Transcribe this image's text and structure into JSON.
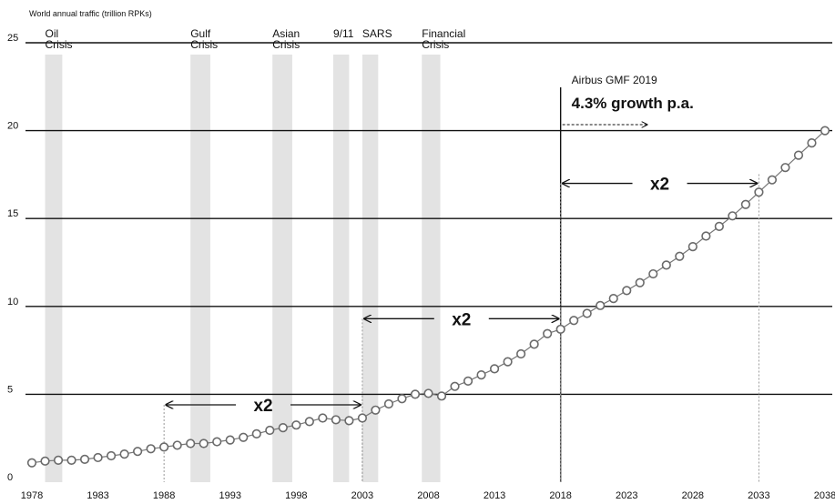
{
  "chart_data": {
    "type": "line",
    "title": "World annual traffic (trillion RPKs)",
    "xlabel": "",
    "ylabel": "",
    "xlim": [
      1978,
      2038
    ],
    "ylim": [
      0,
      25
    ],
    "x_ticks": [
      "1978",
      "1983",
      "1988",
      "1993",
      "1998",
      "2003",
      "2008",
      "2013",
      "2018",
      "2023",
      "2028",
      "2033",
      "2038"
    ],
    "y_ticks": [
      "0",
      "5",
      "10",
      "15",
      "20",
      "25"
    ],
    "grid_y": [
      5,
      10,
      15,
      20,
      25
    ],
    "series": [
      {
        "marker": "open-circle",
        "x": [
          1978,
          1979,
          1980,
          1981,
          1982,
          1983,
          1984,
          1985,
          1986,
          1987,
          1988,
          1989,
          1990,
          1991,
          1992,
          1993,
          1994,
          1995,
          1996,
          1997,
          1998,
          1999,
          2000,
          2001,
          2002,
          2003,
          2004,
          2005,
          2006,
          2007,
          2008,
          2009,
          2010,
          2011,
          2012,
          2013,
          2014,
          2015,
          2016,
          2017,
          2018,
          2019,
          2020,
          2021,
          2022,
          2023,
          2024,
          2025,
          2026,
          2027,
          2028,
          2029,
          2030,
          2031,
          2032,
          2033,
          2034,
          2035,
          2036,
          2037,
          2038
        ],
        "values": [
          1.1,
          1.2,
          1.25,
          1.25,
          1.3,
          1.4,
          1.5,
          1.6,
          1.75,
          1.9,
          2.0,
          2.1,
          2.2,
          2.2,
          2.3,
          2.4,
          2.55,
          2.75,
          2.95,
          3.1,
          3.25,
          3.45,
          3.65,
          3.55,
          3.5,
          3.65,
          4.1,
          4.45,
          4.75,
          5.0,
          5.05,
          4.9,
          5.45,
          5.75,
          6.1,
          6.45,
          6.85,
          7.3,
          7.85,
          8.45,
          8.7,
          9.2,
          9.6,
          10.05,
          10.45,
          10.9,
          11.35,
          11.85,
          12.35,
          12.85,
          13.4,
          14.0,
          14.55,
          15.15,
          15.8,
          16.5,
          17.2,
          17.9,
          18.6,
          19.3,
          20.0
        ]
      }
    ],
    "crises": [
      {
        "label": [
          "Oil",
          "Crisis"
        ],
        "x_start": 1979,
        "x_end": 1980.3
      },
      {
        "label": [
          "Gulf",
          "Crisis"
        ],
        "x_start": 1990,
        "x_end": 1991.5
      },
      {
        "label": [
          "Asian",
          "Crisis"
        ],
        "x_start": 1996.2,
        "x_end": 1997.7
      },
      {
        "label": [
          "9/11"
        ],
        "x_start": 2000.8,
        "x_end": 2002
      },
      {
        "label": [
          "SARS"
        ],
        "x_start": 2003,
        "x_end": 2004.2
      },
      {
        "label": [
          "Financial",
          "Crisis"
        ],
        "x_start": 2007.5,
        "x_end": 2008.9
      }
    ],
    "annotations": {
      "doubling_label": "x2",
      "doublings": [
        {
          "x_from": 1988,
          "x_to": 2003,
          "y": 4.4
        },
        {
          "x_from": 2003,
          "x_to": 2018,
          "y": 9.3
        },
        {
          "x_from": 2018,
          "x_to": 2033,
          "y": 17.0
        }
      ],
      "forecast_x": 2018,
      "forecast_line1": "Airbus GMF 2019",
      "forecast_line2": "4.3% growth p.a."
    }
  }
}
